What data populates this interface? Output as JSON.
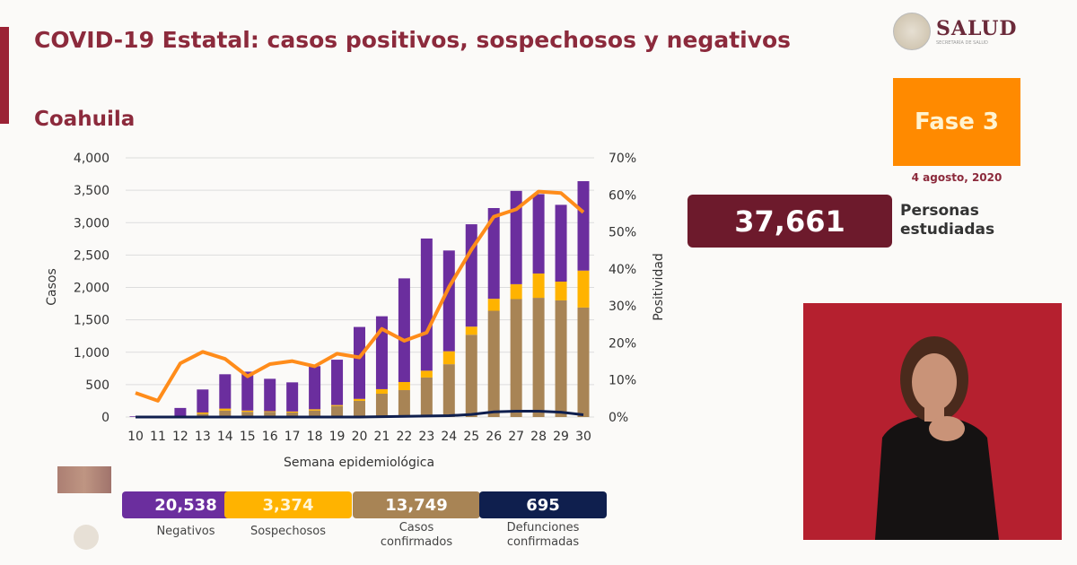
{
  "header": {
    "title": "COVID-19 Estatal: casos positivos, sospechosos y negativos",
    "state": "Coahuila",
    "logo_text": "SALUD",
    "logo_sub": "SECRETARÍA DE SALUD"
  },
  "phase": {
    "label": "Fase 3",
    "date": "4 agosto, 2020",
    "color": "#ff8a00"
  },
  "studied": {
    "value": "37,661",
    "label_line1": "Personas",
    "label_line2": "estudiadas"
  },
  "summary": [
    {
      "value": "20,538",
      "label": "Negativos",
      "color": "#6b2e9e"
    },
    {
      "value": "3,374",
      "label": "Sospechosos",
      "color": "#ffb300"
    },
    {
      "value": "13,749",
      "label": "Casos confirmados",
      "color": "#a88455"
    },
    {
      "value": "695",
      "label": "Defunciones confirmadas",
      "color": "#0f1f4e"
    }
  ],
  "chart_data": {
    "type": "bar",
    "stacked": true,
    "xlabel": "Semana epidemiológica",
    "ylabel": "Casos",
    "y2label": "Positividad",
    "ylim": [
      0,
      4000
    ],
    "y2lim": [
      0,
      70
    ],
    "yticks": [
      "0",
      "500",
      "1,000",
      "1,500",
      "2,000",
      "2,500",
      "3,000",
      "3,500",
      "4,000"
    ],
    "y2ticks": [
      "0%",
      "10%",
      "20%",
      "30%",
      "40%",
      "50%",
      "60%",
      "70%"
    ],
    "grid": true,
    "categories": [
      "10",
      "11",
      "12",
      "13",
      "14",
      "15",
      "16",
      "17",
      "18",
      "19",
      "20",
      "21",
      "22",
      "23",
      "24",
      "25",
      "26",
      "27",
      "28",
      "29",
      "30"
    ],
    "series": [
      {
        "key": "confirmados",
        "color": "#a88455",
        "values": [
          0,
          5,
          5,
          50,
          100,
          80,
          80,
          70,
          100,
          170,
          250,
          360,
          415,
          610,
          815,
          1270,
          1640,
          1820,
          1840,
          1800,
          1690
        ]
      },
      {
        "key": "sospechosos",
        "color": "#ffb300",
        "values": [
          0,
          0,
          5,
          20,
          30,
          20,
          10,
          15,
          20,
          15,
          30,
          70,
          125,
          105,
          200,
          125,
          185,
          230,
          375,
          290,
          570
        ]
      },
      {
        "key": "negativos",
        "color": "#6b2e9e",
        "values": [
          10,
          10,
          130,
          355,
          530,
          600,
          500,
          450,
          665,
          700,
          1110,
          1125,
          1600,
          2040,
          1555,
          1580,
          1400,
          1440,
          1225,
          1185,
          1380
        ]
      }
    ],
    "deaths": {
      "color": "#0f1f4e",
      "values": [
        0,
        0,
        0,
        0,
        0,
        0,
        0,
        0,
        0,
        0,
        0,
        5,
        10,
        15,
        20,
        40,
        80,
        90,
        90,
        75,
        35
      ]
    },
    "positivity": {
      "color": "#ff8c1a",
      "values": [
        6.5,
        4.4,
        14.5,
        17.6,
        15.7,
        11,
        14.3,
        15.1,
        13.7,
        17.1,
        16.1,
        23.8,
        20.6,
        22.8,
        35.1,
        45.2,
        54.1,
        56.1,
        60.9,
        60.5,
        55.3
      ]
    }
  }
}
